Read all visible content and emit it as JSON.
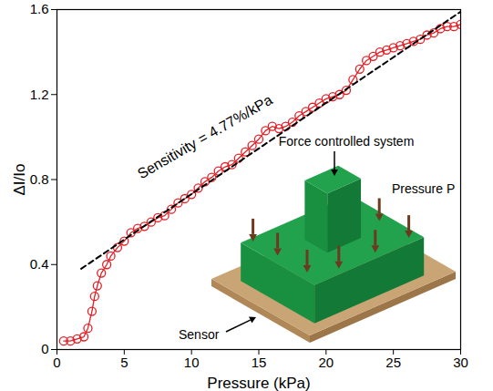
{
  "chart_data": {
    "type": "line",
    "x_label": "Pressure (kPa)",
    "y_label": "ΔI/Io",
    "xlim": [
      0,
      30
    ],
    "xticks": [
      0,
      5,
      10,
      15,
      20,
      25,
      30
    ],
    "ylim": [
      0,
      1.6
    ],
    "yticks": [
      0,
      0.4,
      0.8,
      1.2,
      1.6
    ],
    "grid": false,
    "annotations": [
      "Sensitivity = 4.77%/kPa",
      "Force controlled system",
      "Pressure P",
      "Sensor"
    ],
    "series": [
      {
        "color": "#e41f26",
        "marker": "circle",
        "line_style": "solid",
        "x": [
          0.5,
          1,
          1.5,
          2,
          2.3,
          2.6,
          2.8,
          3.0,
          3.3,
          3.7,
          4,
          4.5,
          5,
          5.5,
          6,
          6.5,
          7,
          7.5,
          8,
          8.5,
          9,
          9.5,
          10,
          10.5,
          11,
          11.5,
          12,
          12.5,
          13,
          13.5,
          14,
          14.5,
          15,
          15.5,
          16,
          16.5,
          17,
          17.5,
          18,
          18.5,
          19,
          19.5,
          20,
          20.5,
          21,
          21.5,
          22,
          22.5,
          23,
          23.5,
          24,
          24.5,
          25,
          25.5,
          26,
          26.5,
          27,
          27.5,
          28,
          28.5,
          29,
          29.5,
          30
        ],
        "values": [
          0.04,
          0.04,
          0.05,
          0.06,
          0.1,
          0.18,
          0.25,
          0.3,
          0.36,
          0.4,
          0.44,
          0.48,
          0.51,
          0.55,
          0.57,
          0.58,
          0.6,
          0.62,
          0.63,
          0.66,
          0.69,
          0.71,
          0.73,
          0.76,
          0.79,
          0.81,
          0.84,
          0.86,
          0.87,
          0.9,
          0.93,
          0.96,
          0.99,
          1.03,
          1.05,
          1.04,
          1.05,
          1.07,
          1.1,
          1.12,
          1.14,
          1.16,
          1.18,
          1.19,
          1.2,
          1.22,
          1.27,
          1.32,
          1.36,
          1.38,
          1.4,
          1.41,
          1.42,
          1.43,
          1.44,
          1.45,
          1.46,
          1.48,
          1.49,
          1.51,
          1.52,
          1.52,
          1.53
        ]
      },
      {
        "color": "#000000",
        "line_style": "dashed",
        "x": [
          1.8,
          30
        ],
        "values": [
          0.38,
          1.59
        ]
      }
    ]
  }
}
